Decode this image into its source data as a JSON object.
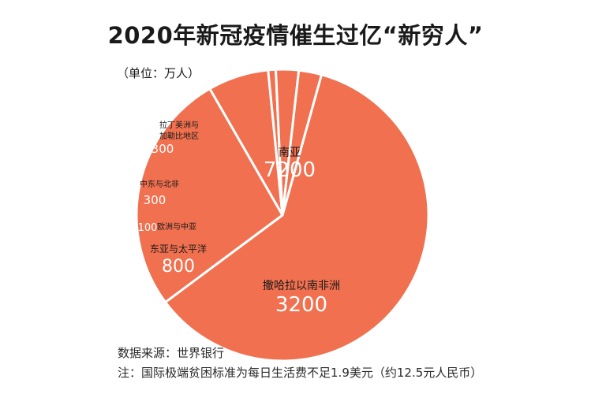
{
  "title": "2020年新冠疫情催生过亿“新穷人”",
  "unit": "（单位：万人）",
  "source": "数据来源：世界银行",
  "note": "注：国际极端贫困标准为每日生活费不足1.9美元（约12.5元人民币）",
  "colors": {
    "slice": "#f0704f",
    "border": "#ffffff",
    "label": "#1a1a1a",
    "value": "#ffffff"
  },
  "chart_data": {
    "type": "pie",
    "title": "2020年新冠疫情催生过亿“新穷人”",
    "unit": "万人",
    "slices": [
      {
        "label": "南亚",
        "value": 7200
      },
      {
        "label": "撒哈拉以南非洲",
        "value": 3200
      },
      {
        "label": "东亚与太平洋",
        "value": 800
      },
      {
        "label": "欧洲与中亚",
        "value": 100
      },
      {
        "label": "中东与北非",
        "value": 300
      },
      {
        "label": "拉丁美洲与加勒比地区",
        "value": 300
      }
    ]
  }
}
